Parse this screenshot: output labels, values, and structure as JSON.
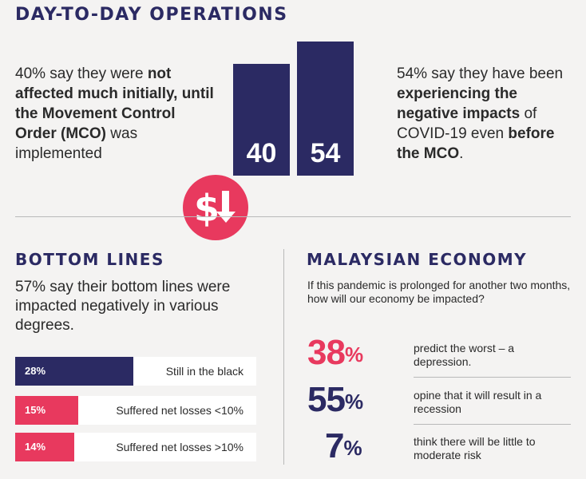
{
  "operations": {
    "title": "DAY-TO-DAY OPERATIONS",
    "left_line1": "40% say they were",
    "left_bold": "not affected much initially, until the Movement Control Order (MCO)",
    "left_tail": " was implemented",
    "right_line1": "54% say they have been ",
    "right_bold1": "experiencing the negative impacts",
    "right_mid": " of COVID-19 even ",
    "right_bold2": "before the MCO",
    "right_end": ".",
    "bar_values": [
      40,
      54
    ],
    "bar_labels": [
      "40",
      "54"
    ],
    "badge_icon": "dollar-down-arrow-icon"
  },
  "bottom_lines": {
    "title": "BOTTOM LINES",
    "summary": "57% say their bottom lines were impacted negatively in various degrees.",
    "rows": [
      {
        "percent_label": "28%",
        "value": 28,
        "label": "Still in the black",
        "color": "#2b2a63"
      },
      {
        "percent_label": "15%",
        "value": 15,
        "label": "Suffered net losses <10%",
        "color": "#e8395e"
      },
      {
        "percent_label": "14%",
        "value": 14,
        "label": "Suffered net losses >10%",
        "color": "#e8395e"
      }
    ]
  },
  "economy": {
    "title": "MALAYSIAN ECONOMY",
    "question": "If this pandemic is prolonged for another two months, how will our economy be impacted?",
    "stats": [
      {
        "number": "38",
        "symbol": "%",
        "text": "predict the worst – a depression.",
        "color": "#e8395e"
      },
      {
        "number": "55",
        "symbol": "%",
        "text": "opine that it will result in a recession",
        "color": "#2b2a63"
      },
      {
        "number": "7",
        "symbol": "%",
        "text": "think there will be little to moderate risk",
        "color": "#2b2a63"
      }
    ]
  },
  "colors": {
    "navy": "#2b2a63",
    "pink": "#e8395e",
    "background": "#f4f3f2"
  }
}
